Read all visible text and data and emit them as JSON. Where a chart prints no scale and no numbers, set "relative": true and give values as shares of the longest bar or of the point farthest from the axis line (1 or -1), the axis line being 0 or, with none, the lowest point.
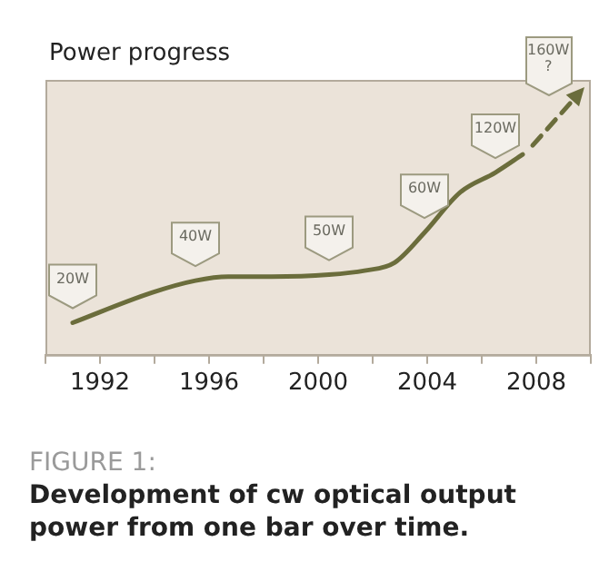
{
  "chart_data": {
    "type": "line",
    "title": "Power progress",
    "relative": true,
    "xlim": [
      1990,
      2010
    ],
    "xticks": [
      {
        "value": 1990,
        "label": null
      },
      1992,
      {
        "value": 1994,
        "label": null
      },
      1996,
      {
        "value": 1998,
        "label": null
      },
      2000,
      {
        "value": 2002,
        "label": null
      },
      2004,
      {
        "value": 2006,
        "label": null
      },
      2008,
      {
        "value": 2010,
        "label": null
      }
    ],
    "series": [
      {
        "color": "#6b6d3c",
        "line_style": "solid",
        "x": [
          1991,
          1993.9,
          1995.5,
          1996.7,
          1998.3,
          2000.4,
          2001.7,
          2002.8,
          2003.9,
          2005.2,
          2006.5,
          2007.5
        ],
        "values": [
          0.16,
          0.31,
          0.37,
          0.39,
          0.39,
          0.4,
          0.42,
          0.46,
          0.61,
          0.81,
          0.91,
          1.0
        ]
      }
    ],
    "annotations": [
      {
        "text": "20W",
        "x": 1991,
        "y": 0.16
      },
      {
        "text": "40W",
        "x": 1995.5,
        "y": 0.37
      },
      {
        "text": "50W",
        "x": 2000.4,
        "y": 0.4
      },
      {
        "text": "60W",
        "x": 2003.9,
        "y": 0.61
      },
      {
        "text": "120W",
        "x": 2006.5,
        "y": 0.91
      },
      "160W\n?",
      "FIGURE 1:",
      "Development of cw optical output power from one bar over time."
    ],
    "grid": false,
    "legend": false,
    "marker": "none"
  }
}
